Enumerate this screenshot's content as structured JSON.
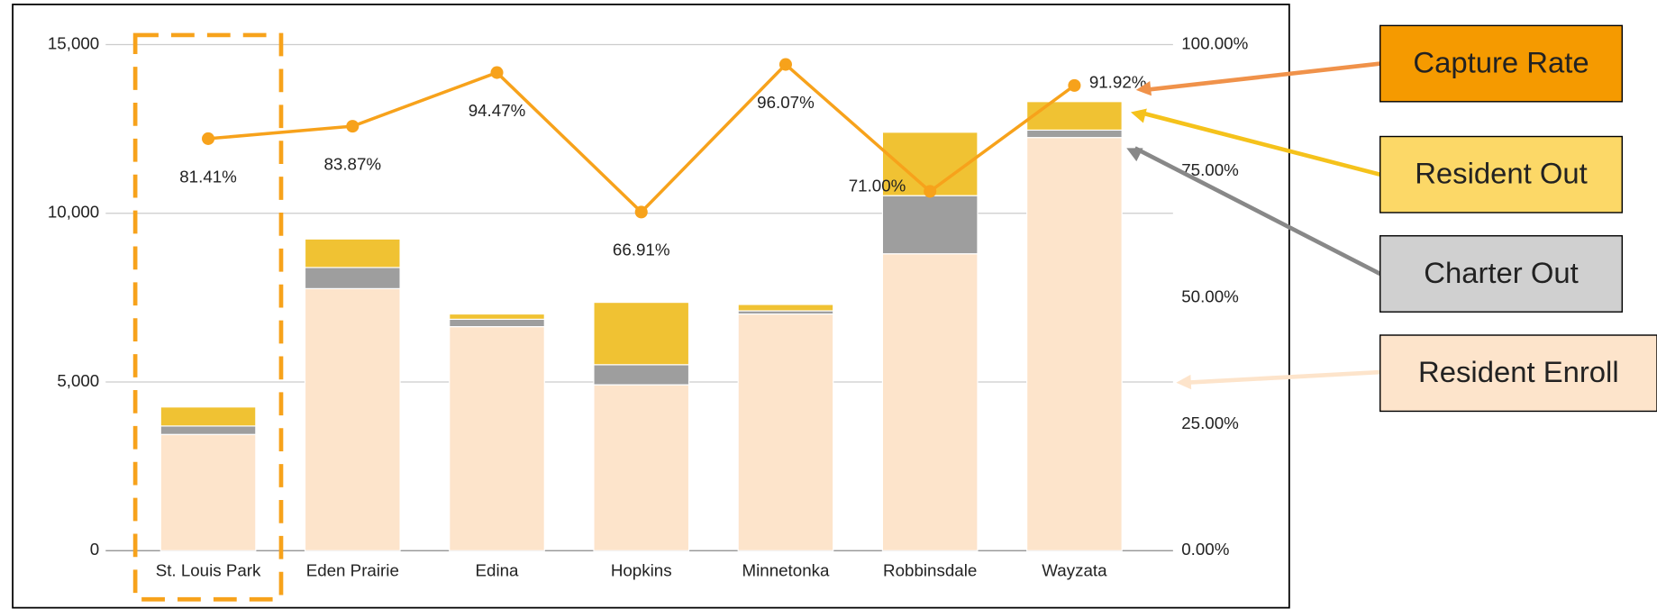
{
  "chart_data": {
    "type": "bar",
    "stacked": true,
    "categories": [
      "St. Louis Park",
      "Eden Prairie",
      "Edina",
      "Hopkins",
      "Minnetonka",
      "Robbinsdale",
      "Wayzata"
    ],
    "series": [
      {
        "name": "Resident Enroll",
        "color": "#fde4cb",
        "axis": "y",
        "values": [
          3445,
          7767,
          6640,
          4917,
          7015,
          8800,
          12245
        ]
      },
      {
        "name": "Charter Out",
        "color": "#9e9e9e",
        "axis": "y",
        "values": [
          250,
          626,
          219,
          595,
          94,
          1723,
          220
        ]
      },
      {
        "name": "Resident Out",
        "color": "#f0c233",
        "axis": "y",
        "values": [
          564,
          845,
          156,
          1848,
          188,
          1879,
          845
        ]
      },
      {
        "name": "Capture Rate",
        "color": "#f7a21b",
        "axis": "y2",
        "type": "line",
        "values": [
          81.41,
          83.87,
          94.47,
          66.91,
          96.07,
          71.0,
          91.92
        ],
        "value_labels": [
          "81.41%",
          "83.87%",
          "94.47%",
          "66.91%",
          "96.07%",
          "71.00%",
          "91.92%"
        ]
      }
    ],
    "ylim": [
      0,
      15000
    ],
    "yticks": [
      0,
      {
        "value": 5000,
        "label": "5,000"
      },
      {
        "value": 10000,
        "label": "10,000"
      },
      {
        "value": 15000,
        "label": "15,000"
      }
    ],
    "y2lim": [
      0,
      100
    ],
    "y2ticks": [
      {
        "value": 0,
        "label": "0.00%"
      },
      {
        "value": 25,
        "label": "25.00%"
      },
      {
        "value": 50,
        "label": "50.00%"
      },
      {
        "value": 75,
        "label": "75.00%"
      },
      {
        "value": 100,
        "label": "100.00%"
      }
    ],
    "grid": true,
    "legend_colors": [
      "#fde4cb",
      "#d0d0d0",
      "#fcd867",
      "#f59a00"
    ]
  }
}
